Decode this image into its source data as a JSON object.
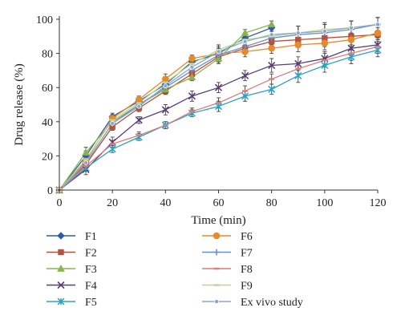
{
  "chart_data": {
    "type": "line",
    "title": "",
    "xlabel": "Time (min)",
    "ylabel": "Drug release (%)",
    "xlim": [
      0,
      120
    ],
    "ylim": [
      0,
      100
    ],
    "x_ticks": [
      0,
      20,
      40,
      60,
      80,
      100,
      120
    ],
    "y_ticks": [
      0,
      20,
      40,
      60,
      80,
      100
    ],
    "grid": false,
    "legend_position": "bottom",
    "series": [
      {
        "name": "F1",
        "color": "#2b5ea7",
        "marker": "diamond",
        "x": [
          0,
          10,
          20,
          30,
          40,
          50,
          60,
          70,
          80
        ],
        "y": [
          0,
          20,
          43,
          52,
          62,
          75,
          80,
          89,
          95
        ],
        "err": [
          1,
          3,
          2,
          2,
          3,
          2,
          3,
          2,
          2
        ]
      },
      {
        "name": "F2",
        "color": "#b5523b",
        "marker": "square",
        "x": [
          0,
          10,
          20,
          30,
          40,
          50,
          60,
          70,
          80,
          90,
          100,
          110,
          120
        ],
        "y": [
          0,
          15,
          37,
          48,
          58,
          68,
          78,
          83,
          87,
          88,
          89,
          90,
          91
        ],
        "err": [
          1,
          3,
          2,
          2,
          2,
          2,
          3,
          3,
          3,
          4,
          5,
          5,
          4
        ]
      },
      {
        "name": "F3",
        "color": "#8bb34a",
        "marker": "triangle",
        "x": [
          0,
          10,
          20,
          30,
          40,
          50,
          60,
          70,
          80
        ],
        "y": [
          0,
          22,
          40,
          50,
          59,
          66,
          77,
          92,
          97
        ],
        "err": [
          1,
          3,
          3,
          2,
          3,
          2,
          3,
          2,
          2
        ]
      },
      {
        "name": "F4",
        "color": "#5a3d7a",
        "marker": "x",
        "x": [
          0,
          10,
          20,
          30,
          40,
          50,
          60,
          70,
          80,
          90,
          100,
          110,
          120
        ],
        "y": [
          0,
          12,
          28,
          41,
          47,
          55,
          60,
          67,
          73,
          74,
          77,
          83,
          85
        ],
        "err": [
          1,
          3,
          3,
          2,
          3,
          3,
          3,
          3,
          4,
          4,
          4,
          4,
          4
        ]
      },
      {
        "name": "F5",
        "color": "#2aa3c4",
        "marker": "star",
        "x": [
          0,
          10,
          20,
          30,
          40,
          50,
          60,
          70,
          80,
          90,
          100,
          110,
          120
        ],
        "y": [
          0,
          13,
          24,
          31,
          38,
          45,
          49,
          55,
          59,
          67,
          73,
          78,
          82
        ],
        "err": [
          1,
          2,
          2,
          2,
          2,
          2,
          3,
          3,
          3,
          4,
          4,
          4,
          4
        ]
      },
      {
        "name": "F6",
        "color": "#e68a2e",
        "marker": "circle",
        "x": [
          0,
          10,
          20,
          30,
          40,
          50,
          60,
          70,
          80,
          90,
          100,
          110,
          120
        ],
        "y": [
          0,
          17,
          42,
          53,
          65,
          77,
          80,
          81,
          83,
          85,
          86,
          88,
          92
        ],
        "err": [
          1,
          3,
          2,
          2,
          3,
          2,
          3,
          3,
          3,
          4,
          4,
          4,
          4
        ]
      },
      {
        "name": "F7",
        "color": "#6a8fd0",
        "marker": "plus",
        "x": [
          0,
          10,
          20,
          30,
          40,
          50,
          60,
          70,
          80,
          90,
          100,
          110,
          120
        ],
        "y": [
          0,
          16,
          39,
          50,
          60,
          70,
          79,
          84,
          89,
          91,
          92,
          94,
          97
        ],
        "err": [
          1,
          3,
          2,
          2,
          3,
          2,
          3,
          3,
          4,
          5,
          5,
          5,
          4
        ]
      },
      {
        "name": "F8",
        "color": "#e07b7b",
        "marker": "dash",
        "x": [
          0,
          10,
          20,
          30,
          40,
          50,
          60,
          70,
          80,
          90,
          100,
          110,
          120
        ],
        "y": [
          0,
          14,
          27,
          32,
          38,
          46,
          51,
          58,
          65,
          71,
          76,
          80,
          84
        ],
        "err": [
          1,
          2,
          2,
          2,
          2,
          2,
          3,
          3,
          3,
          3,
          4,
          4,
          4
        ]
      },
      {
        "name": "F9",
        "color": "#b9d98c",
        "marker": "dash",
        "x": [
          0,
          10,
          20,
          30,
          40,
          50,
          60,
          70,
          80,
          90,
          100,
          110,
          120
        ],
        "y": [
          0,
          18,
          41,
          51,
          63,
          74,
          82,
          88,
          90,
          92,
          94,
          95,
          97
        ],
        "err": [
          1,
          3,
          2,
          2,
          3,
          2,
          3,
          3,
          3,
          4,
          4,
          4,
          4
        ]
      },
      {
        "name": "Ex vivo study",
        "color": "#8aa6cf",
        "marker": "circle-small",
        "x": [
          0,
          10,
          20,
          30,
          40,
          50,
          60,
          70,
          80,
          90,
          100,
          110,
          120
        ],
        "y": [
          0,
          16,
          39,
          49,
          61,
          72,
          81,
          87,
          91,
          92,
          93,
          95,
          97
        ],
        "err": [
          1,
          3,
          2,
          2,
          3,
          2,
          3,
          3,
          3,
          4,
          4,
          4,
          4
        ]
      }
    ]
  }
}
